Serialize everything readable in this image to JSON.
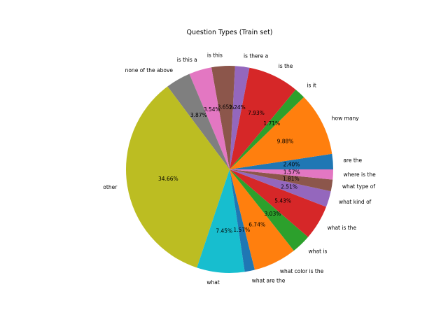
{
  "chart_data": {
    "type": "pie",
    "title": "Question Types (Train set)",
    "start_angle_deg": 0,
    "direction": "counterclockwise",
    "slices": [
      {
        "label": "are the",
        "value": 2.4,
        "pct_label": "2.40%",
        "color": "#1f77b4"
      },
      {
        "label": "how many",
        "value": 9.88,
        "pct_label": "9.88%",
        "color": "#ff7f0e"
      },
      {
        "label": "is it",
        "value": 1.71,
        "pct_label": "1.71%",
        "color": "#2ca02c"
      },
      {
        "label": "is the",
        "value": 7.93,
        "pct_label": "7.93%",
        "color": "#d62728"
      },
      {
        "label": "is there a",
        "value": 2.24,
        "pct_label": "2.24%",
        "color": "#9467bd"
      },
      {
        "label": "is this",
        "value": 3.65,
        "pct_label": "3.65%",
        "color": "#8c564b"
      },
      {
        "label": "is this a",
        "value": 3.54,
        "pct_label": "3.54%",
        "color": "#e377c2"
      },
      {
        "label": "none of the above",
        "value": 3.87,
        "pct_label": "3.87%",
        "color": "#7f7f7f"
      },
      {
        "label": "other",
        "value": 34.66,
        "pct_label": "34.66%",
        "color": "#bcbd22"
      },
      {
        "label": "what",
        "value": 7.45,
        "pct_label": "7.45%",
        "color": "#17becf"
      },
      {
        "label": "what are the",
        "value": 1.57,
        "pct_label": "1.57%",
        "color": "#1f77b4"
      },
      {
        "label": "what color is the",
        "value": 6.74,
        "pct_label": "6.74%",
        "color": "#ff7f0e"
      },
      {
        "label": "what is",
        "value": 3.03,
        "pct_label": "3.03%",
        "color": "#2ca02c"
      },
      {
        "label": "what is the",
        "value": 5.43,
        "pct_label": "5.43%",
        "color": "#d62728"
      },
      {
        "label": "what kind of",
        "value": 2.51,
        "pct_label": "2.51%",
        "color": "#9467bd"
      },
      {
        "label": "what type of",
        "value": 1.81,
        "pct_label": "1.81%",
        "color": "#8c564b"
      },
      {
        "label": "where is the",
        "value": 1.57,
        "pct_label": "1.57%",
        "color": "#e377c2"
      }
    ]
  }
}
